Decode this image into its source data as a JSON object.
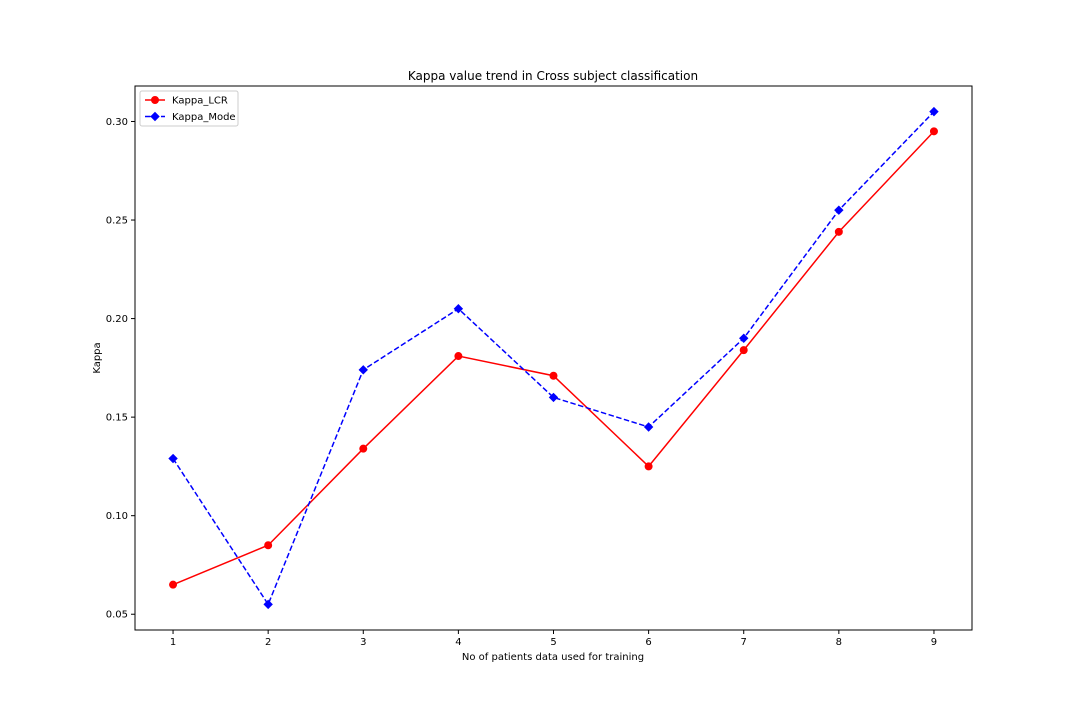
{
  "chart_data": {
    "type": "line",
    "title": "Kappa value trend in Cross subject classification",
    "xlabel": "No of patients data used for training",
    "ylabel": "Kappa",
    "x": [
      1,
      2,
      3,
      4,
      5,
      6,
      7,
      8,
      9
    ],
    "x_ticks": [
      "1",
      "2",
      "3",
      "4",
      "5",
      "6",
      "7",
      "8",
      "9"
    ],
    "y_ticks": [
      "0.05",
      "0.10",
      "0.15",
      "0.20",
      "0.25",
      "0.30"
    ],
    "xlim": [
      0.6,
      9.4
    ],
    "ylim": [
      0.042,
      0.318
    ],
    "grid": false,
    "legend_position": "top-left",
    "series": [
      {
        "name": "Kappa_LCR",
        "values": [
          0.065,
          0.085,
          0.134,
          0.181,
          0.171,
          0.125,
          0.184,
          0.244,
          0.295
        ],
        "color": "#ff0000",
        "line_style": "solid",
        "marker": "circle"
      },
      {
        "name": "Kappa_Mode",
        "values": [
          0.129,
          0.055,
          0.174,
          0.205,
          0.16,
          0.145,
          0.19,
          0.255,
          0.305
        ],
        "color": "#0000ff",
        "line_style": "dashed",
        "marker": "diamond"
      }
    ]
  }
}
